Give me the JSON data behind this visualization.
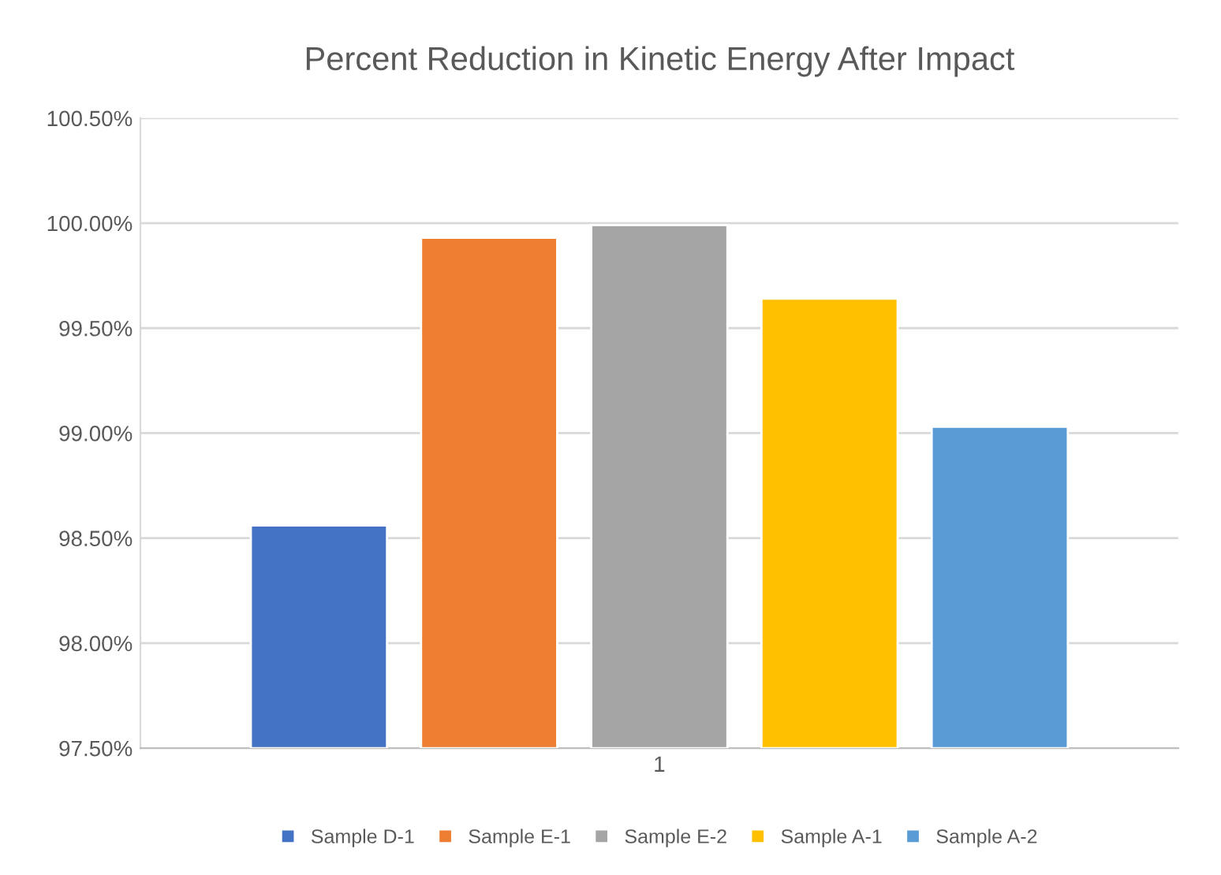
{
  "chart_data": {
    "type": "bar",
    "title": "Percent Reduction in Kinetic Energy After Impact",
    "categories": [
      "1"
    ],
    "series": [
      {
        "name": "Sample D-1",
        "color": "#4472c4",
        "values": [
          98.56
        ]
      },
      {
        "name": "Sample E-1",
        "color": "#ed7d31",
        "values": [
          99.93
        ]
      },
      {
        "name": "Sample E-2",
        "color": "#a5a5a5",
        "values": [
          99.99
        ]
      },
      {
        "name": "Sample A-1",
        "color": "#ffc000",
        "values": [
          99.64
        ]
      },
      {
        "name": "Sample A-2",
        "color": "#5b9bd5",
        "values": [
          99.03
        ]
      }
    ],
    "ylim": [
      97.5,
      100.5
    ],
    "yticks": [
      {
        "value": 97.5,
        "label": "97.50%"
      },
      {
        "value": 98.0,
        "label": "98.00%"
      },
      {
        "value": 98.5,
        "label": "98.50%"
      },
      {
        "value": 99.0,
        "label": "99.00%"
      },
      {
        "value": 99.5,
        "label": "99.50%"
      },
      {
        "value": 100.0,
        "label": "100.00%"
      },
      {
        "value": 100.5,
        "label": "100.50%"
      }
    ],
    "grid": "y",
    "legend": "bottom"
  }
}
